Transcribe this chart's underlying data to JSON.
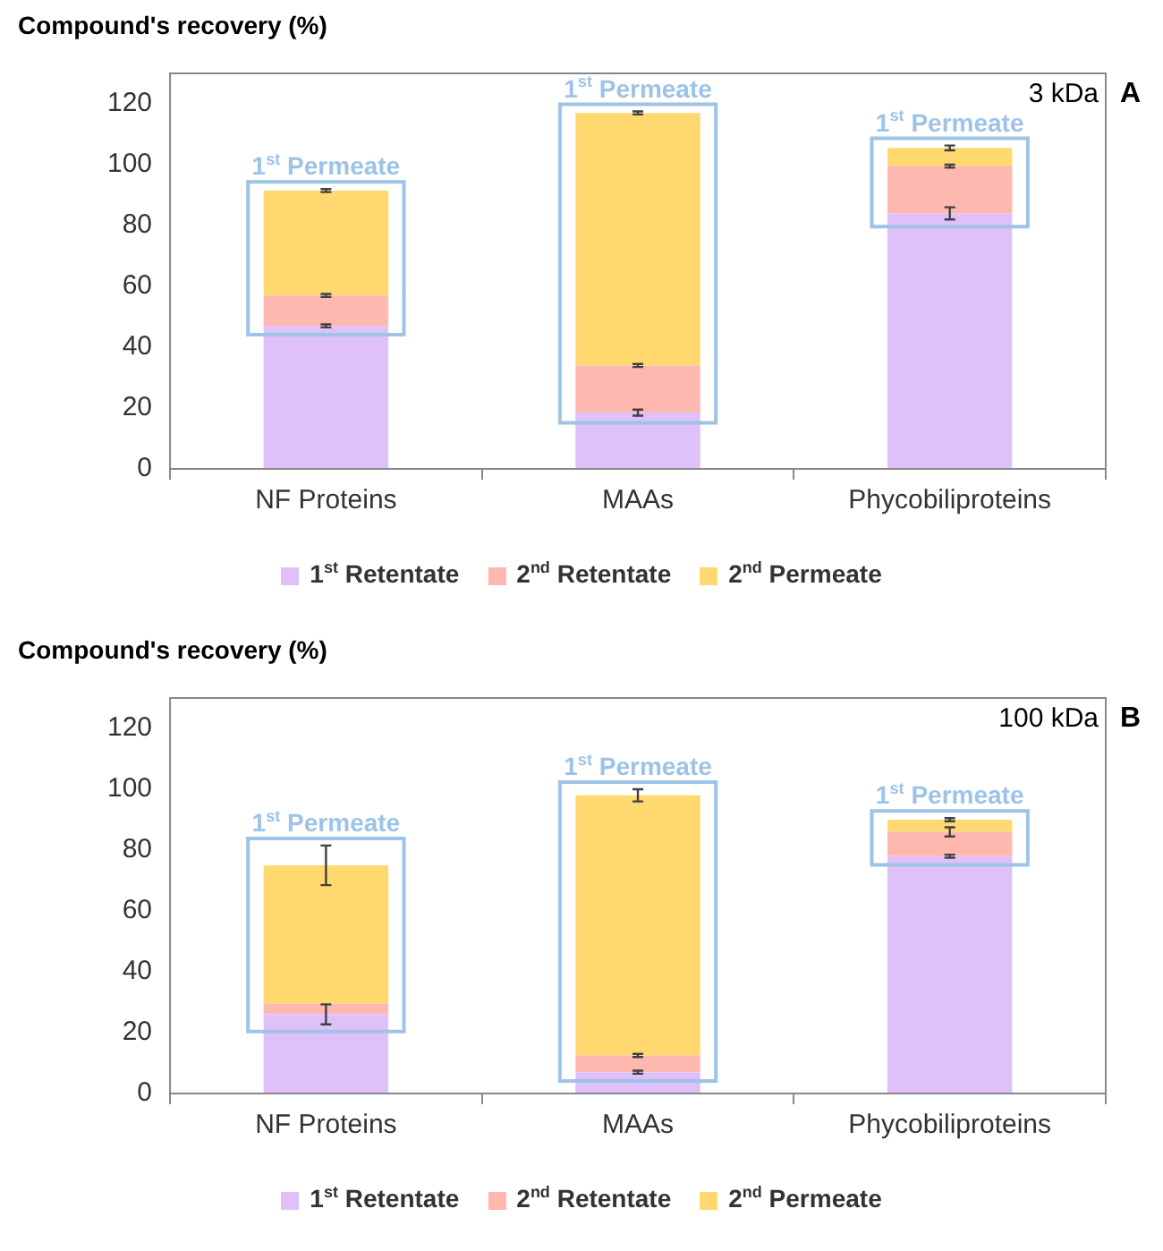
{
  "chart_data": [
    {
      "type": "bar",
      "title": "Compound's recovery (%)",
      "stacked": true,
      "categories": [
        "NF Proteins",
        "MAAs",
        "Phycobiliproteins"
      ],
      "series": [
        {
          "name": "1$^{st}$ Retentate",
          "color": "#e0c0f8",
          "values": [
            47,
            18.5,
            84
          ],
          "errors": [
            0.5,
            1,
            2
          ]
        },
        {
          "name": "2$^{nd}$ Retentate",
          "color": "#ffb8b0",
          "values": [
            10,
            15.5,
            15.5
          ],
          "errors": [
            0.5,
            0.5,
            0.5
          ]
        },
        {
          "name": "2$^{nd}$ Permeate",
          "color": "#ffd970",
          "values": [
            34.5,
            83,
            6
          ],
          "errors": [
            0.5,
            0.5,
            0.8
          ]
        }
      ],
      "ylim": [
        0,
        130
      ],
      "yticks": [
        0,
        20,
        40,
        60,
        80,
        100,
        120
      ],
      "grid": false,
      "legend": "bottom",
      "annotations": [
        "3 kDa",
        "A",
        "1$^{st}$ Permeate",
        "1$^{st}$ Permeate",
        "1$^{st}$ Permeate"
      ]
    },
    {
      "type": "bar",
      "title": "Compound's recovery (%)",
      "stacked": true,
      "categories": [
        "NF Proteins",
        "MAAs",
        "Phycobiliproteins"
      ],
      "series": [
        {
          "name": "1$^{st}$ Retentate",
          "color": "#e0c0f8",
          "values": [
            26,
            7,
            78
          ],
          "errors": [
            3.3,
            0.5,
            0.5
          ]
        },
        {
          "name": "2$^{nd}$ Retentate",
          "color": "#ffb8b0",
          "values": [
            3.5,
            5.5,
            8
          ],
          "errors": [
            null,
            0.5,
            1.5
          ]
        },
        {
          "name": "2$^{nd}$ Permeate",
          "color": "#ffd970",
          "values": [
            45.5,
            85.5,
            4
          ],
          "errors": [
            6.5,
            2,
            0.5
          ]
        }
      ],
      "ylim": [
        0,
        130
      ],
      "yticks": [
        0,
        20,
        40,
        60,
        80,
        100,
        120
      ],
      "grid": false,
      "legend": "bottom",
      "annotations": [
        "100 kDa",
        "B",
        "1$^{st}$ Permeate",
        "1$^{st}$ Permeate",
        "1$^{st}$ Permeate"
      ]
    }
  ]
}
